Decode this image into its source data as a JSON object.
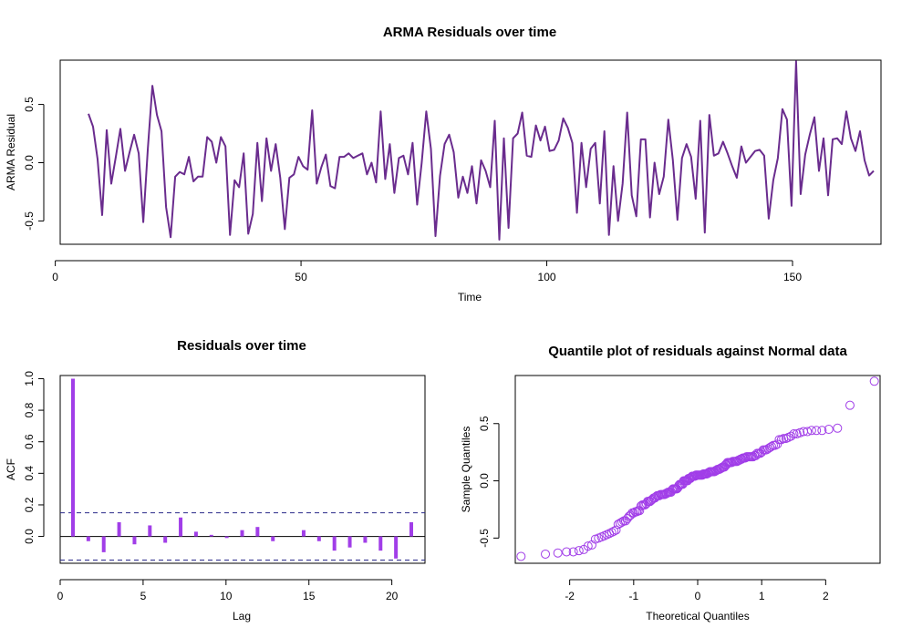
{
  "chart_data": [
    {
      "type": "line",
      "title": "ARMA Residuals over time",
      "xlabel": "Time",
      "ylabel": "ARMA Residual",
      "xlim": [
        1,
        168
      ],
      "ylim": [
        -0.7,
        0.88
      ],
      "xticks": [
        0,
        50,
        100,
        150
      ],
      "xtick_labels": [
        "0",
        "50",
        "100",
        "150"
      ],
      "yticks": [
        -0.5,
        0.0,
        0.5
      ],
      "ytick_labels": [
        "-0.5",
        "0.0",
        "0.5"
      ],
      "grid": false,
      "color": "#6a2c8e",
      "x_start": 1,
      "values": [
        0.42,
        0.31,
        0.03,
        -0.45,
        0.28,
        -0.18,
        0.05,
        0.29,
        -0.07,
        0.09,
        0.24,
        0.08,
        -0.51,
        0.12,
        0.66,
        0.41,
        0.27,
        -0.38,
        -0.64,
        -0.12,
        -0.08,
        -0.1,
        0.05,
        -0.16,
        -0.12,
        -0.12,
        0.22,
        0.18,
        0.0,
        0.22,
        0.14,
        -0.62,
        -0.15,
        -0.21,
        0.08,
        -0.61,
        -0.44,
        0.17,
        -0.33,
        0.21,
        -0.07,
        0.16,
        -0.13,
        -0.57,
        -0.13,
        -0.1,
        0.05,
        -0.03,
        -0.06,
        0.45,
        -0.18,
        -0.04,
        0.07,
        -0.2,
        -0.22,
        0.05,
        0.05,
        0.08,
        0.04,
        0.06,
        0.08,
        -0.1,
        0.0,
        -0.17,
        0.44,
        -0.14,
        0.16,
        -0.26,
        0.04,
        0.06,
        -0.1,
        0.17,
        -0.36,
        0.0,
        0.44,
        0.12,
        -0.63,
        -0.11,
        0.16,
        0.24,
        0.09,
        -0.3,
        -0.12,
        -0.26,
        -0.03,
        -0.35,
        0.02,
        -0.07,
        -0.21,
        0.36,
        -0.66,
        0.21,
        -0.56,
        0.21,
        0.25,
        0.43,
        0.06,
        0.05,
        0.32,
        0.19,
        0.31,
        0.1,
        0.11,
        0.19,
        0.38,
        0.3,
        0.17,
        -0.43,
        0.17,
        -0.21,
        0.12,
        0.17,
        -0.35,
        0.27,
        -0.62,
        -0.03,
        -0.5,
        -0.18,
        0.43,
        -0.28,
        -0.46,
        0.2,
        0.2,
        -0.47,
        0.0,
        -0.27,
        -0.12,
        0.37,
        0.02,
        -0.49,
        0.04,
        0.16,
        0.05,
        -0.31,
        0.36,
        -0.6,
        0.41,
        0.06,
        0.08,
        0.18,
        0.08,
        -0.03,
        -0.13,
        0.14,
        0.0,
        0.05,
        0.1,
        0.11,
        0.06,
        -0.48,
        -0.15,
        0.04,
        0.46,
        0.37,
        -0.37,
        0.87,
        -0.27,
        0.07,
        0.24,
        0.39,
        -0.07,
        0.21,
        -0.28,
        0.2,
        0.21,
        0.16,
        0.44,
        0.21,
        0.1,
        0.27,
        0.02,
        -0.11,
        -0.07
      ]
    },
    {
      "type": "bar",
      "title": "Residuals over time",
      "xlabel": "Lag",
      "ylabel": "ACF",
      "xlim": [
        0,
        22
      ],
      "ylim": [
        -0.17,
        1.02
      ],
      "xticks": [
        0,
        5,
        10,
        15,
        20
      ],
      "xtick_labels": [
        "0",
        "5",
        "10",
        "15",
        "20"
      ],
      "yticks": [
        0.0,
        0.2,
        0.4,
        0.6,
        0.8,
        1.0
      ],
      "ytick_labels": [
        "0.0",
        "0.2",
        "0.4",
        "0.6",
        "0.8",
        "1.0"
      ],
      "grid": false,
      "color": "#a13ee8",
      "band_color": "#2a2a8a",
      "confidence_band": [
        -0.15,
        0.15
      ],
      "lags": [
        0,
        1,
        2,
        3,
        4,
        5,
        6,
        7,
        8,
        9,
        10,
        11,
        12,
        13,
        14,
        15,
        16,
        17,
        18,
        19,
        20,
        21,
        22
      ],
      "values": [
        1.0,
        -0.03,
        -0.1,
        0.09,
        -0.05,
        0.07,
        -0.04,
        0.12,
        0.03,
        0.01,
        -0.01,
        0.04,
        0.06,
        -0.03,
        0.0,
        0.04,
        -0.03,
        -0.09,
        -0.07,
        -0.04,
        -0.09,
        -0.14,
        0.09
      ]
    },
    {
      "type": "scatter",
      "title": "Quantile plot of residuals against Normal data",
      "xlabel": "Theoretical Quantiles",
      "ylabel": "Sample Quantiles",
      "xlim": [
        -2.85,
        2.85
      ],
      "ylim": [
        -0.72,
        0.92
      ],
      "xticks": [
        -2,
        -1,
        0,
        1,
        2
      ],
      "xtick_labels": [
        "-2",
        "-1",
        "0",
        "1",
        "2"
      ],
      "yticks": [
        -0.5,
        0.0,
        0.5
      ],
      "ytick_labels": [
        "-0.5",
        "0.0",
        "0.5"
      ],
      "grid": false,
      "color": "#a13ee8"
    }
  ]
}
